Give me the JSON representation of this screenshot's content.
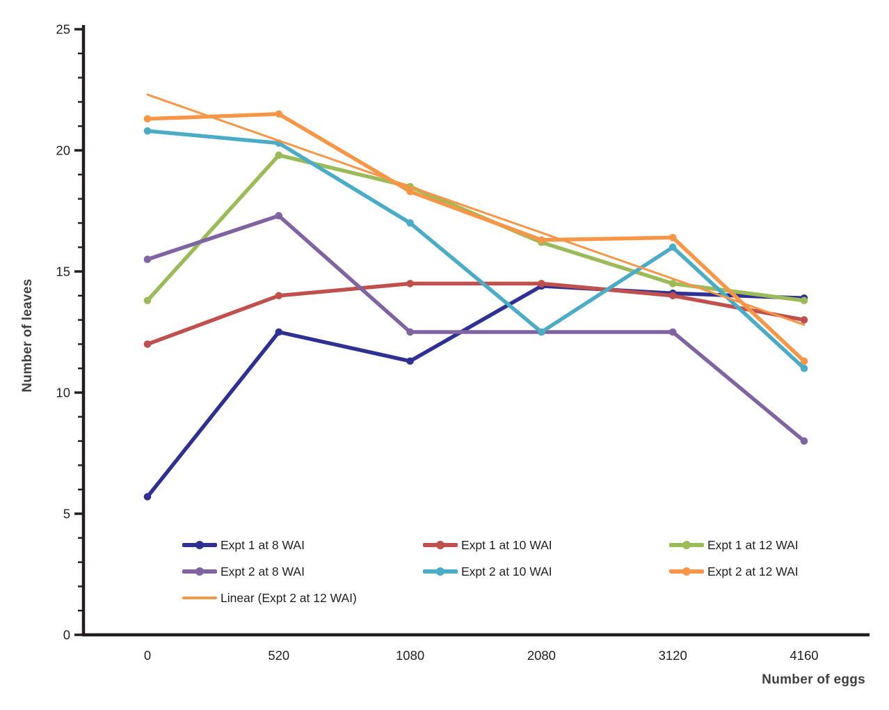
{
  "colors": {
    "background": "#FFFFFF",
    "axis": "#231F20",
    "tick_text": "#231F20",
    "axis_title_text": "#404040"
  },
  "chart_data": {
    "type": "line",
    "title": "",
    "xlabel": "Number of eggs",
    "ylabel": "Number of leaves",
    "categories": [
      "0",
      "520",
      "1080",
      "2080",
      "3120",
      "4160"
    ],
    "ylim": [
      0,
      25
    ],
    "ytick_major_step": 5,
    "ytick_minor_step": 1,
    "grid": false,
    "legend_position": "inside-bottom-left, 3 columns",
    "series": [
      {
        "name": "Expt 1 at 8 WAI",
        "color": "#2E3192",
        "marker": true,
        "line_width": 5.5,
        "values": [
          5.7,
          12.5,
          11.3,
          14.4,
          14.1,
          13.9
        ],
        "legend": {
          "col": 0,
          "row": 0
        }
      },
      {
        "name": "Expt 1 at 10 WAI",
        "color": "#C0504D",
        "marker": true,
        "line_width": 5.5,
        "values": [
          12.0,
          14.0,
          14.5,
          14.5,
          14.0,
          13.0
        ],
        "legend": {
          "col": 1,
          "row": 0
        }
      },
      {
        "name": "Expt 1 at 12 WAI",
        "color": "#9BBB59",
        "marker": true,
        "line_width": 5.5,
        "values": [
          13.8,
          19.8,
          18.5,
          16.2,
          14.5,
          13.8
        ],
        "legend": {
          "col": 2,
          "row": 0
        }
      },
      {
        "name": "Expt 2 at 8 WAI",
        "color": "#8064A2",
        "marker": true,
        "line_width": 5.5,
        "values": [
          15.5,
          17.3,
          12.5,
          12.5,
          12.5,
          8.0
        ],
        "legend": {
          "col": 0,
          "row": 1
        }
      },
      {
        "name": "Expt 2 at 10 WAI",
        "color": "#4BACC6",
        "marker": true,
        "line_width": 5.5,
        "values": [
          20.8,
          20.3,
          17.0,
          12.5,
          16.0,
          11.0
        ],
        "legend": {
          "col": 1,
          "row": 1
        }
      },
      {
        "name": "Expt 2 at 12 WAI",
        "color": "#F79646",
        "marker": true,
        "line_width": 5.5,
        "values": [
          21.3,
          21.5,
          18.3,
          16.3,
          16.4,
          11.3
        ],
        "legend": {
          "col": 2,
          "row": 1
        }
      },
      {
        "name": "Linear (Expt 2 at 12 WAI)",
        "color": "#F79646",
        "marker": false,
        "line_width": 3,
        "values": [
          22.3,
          20.4,
          18.5,
          16.6,
          14.7,
          12.8
        ],
        "legend": {
          "col": 0,
          "row": 2
        }
      }
    ]
  }
}
